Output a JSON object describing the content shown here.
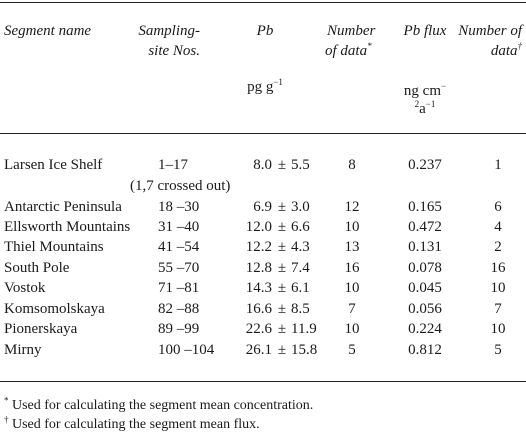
{
  "header": {
    "segment": "Segment name",
    "site_line1": "Sampling-",
    "site_line2": "site Nos.",
    "pb": "Pb",
    "pb_unit_base": "pg g",
    "pb_unit_exp": "−1",
    "ndata1_line1": "Number",
    "ndata1_line2": "of data",
    "ndata1_mark": "*",
    "flux": "Pb flux",
    "flux_unit_line1": "ng cm",
    "flux_unit_line1_sup": "−",
    "flux_unit_line2_sup": "2",
    "flux_unit_line2": "a",
    "flux_unit_line2_exp": "−1",
    "ndata2_line1": "Number of",
    "ndata2_line2": "data",
    "ndata2_mark": "†"
  },
  "rows": [
    {
      "name": "Larsen Ice Shelf",
      "site": "1–17",
      "pb": "8.0",
      "sd": "5.5",
      "n1": "8",
      "flux": "0.237",
      "n2": "1"
    },
    {
      "name": "Antarctic Peninsula",
      "site": "18 –30",
      "pb": "6.9",
      "sd": "3.0",
      "n1": "12",
      "flux": "0.165",
      "n2": "6"
    },
    {
      "name": "Ellsworth Mountains",
      "site": "31 –40",
      "pb": "12.0",
      "sd": "6.6",
      "n1": "10",
      "flux": "0.472",
      "n2": "4"
    },
    {
      "name": "Thiel Mountains",
      "site": "41 –54",
      "pb": "12.2",
      "sd": "4.3",
      "n1": "13",
      "flux": "0.131",
      "n2": "2"
    },
    {
      "name": "South Pole",
      "site": "55 –70",
      "pb": "12.8",
      "sd": "7.4",
      "n1": "16",
      "flux": "0.078",
      "n2": "16"
    },
    {
      "name": "Vostok",
      "site": "71 –81",
      "pb": "14.3",
      "sd": "6.1",
      "n1": "10",
      "flux": "0.045",
      "n2": "10"
    },
    {
      "name": "Komsomolskaya",
      "site": "82 –88",
      "pb": "16.6",
      "sd": "8.5",
      "n1": "7",
      "flux": "0.056",
      "n2": "7"
    },
    {
      "name": "Pionerskaya",
      "site": "89 –99",
      "pb": "22.6",
      "sd": "11.9",
      "n1": "10",
      "flux": "0.224",
      "n2": "10"
    },
    {
      "name": "Mirny",
      "site": "100 –104",
      "pb": "26.1",
      "sd": "15.8",
      "n1": "5",
      "flux": "0.812",
      "n2": "5"
    }
  ],
  "pm": "±",
  "larsen_note": "(1,7 crossed out)",
  "footnotes": {
    "star_mark": "*",
    "star_text": "Used for calculating the segment mean concentration.",
    "dagger_mark": "†",
    "dagger_text": "Used for calculating the segment mean flux."
  }
}
